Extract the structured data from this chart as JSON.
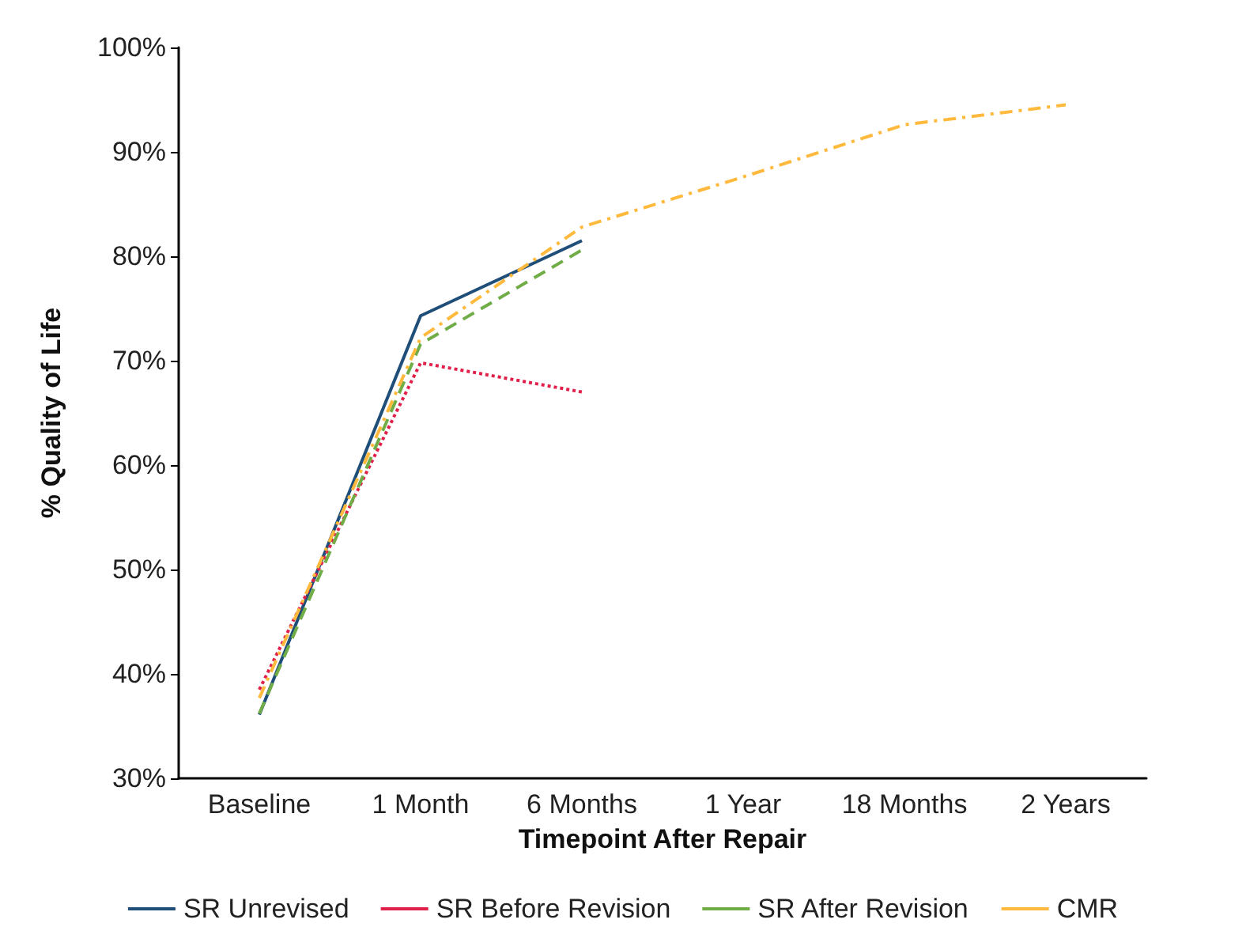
{
  "chart_data": {
    "type": "line",
    "xlabel": "Timepoint After Repair",
    "ylabel": "% Quality of Life",
    "categories": [
      "Baseline",
      "1 Month",
      "6 Months",
      "1 Year",
      "18 Months",
      "2 Years"
    ],
    "series": [
      {
        "name": "SR Unrevised",
        "color": "#1f4e79",
        "line_style": "solid",
        "values": [
          36.1,
          74.3,
          81.5,
          null,
          null,
          null
        ]
      },
      {
        "name": "SR Before Revision",
        "color": "#e0204a",
        "line_style": "dotted",
        "values": [
          38.5,
          69.8,
          67.0,
          null,
          null,
          null
        ]
      },
      {
        "name": "SR After Revision",
        "color": "#70ad47",
        "line_style": "dashed",
        "values": [
          36.2,
          71.6,
          80.6,
          null,
          null,
          null
        ]
      },
      {
        "name": "CMR",
        "color": "#ffb93c",
        "line_style": "dashdot",
        "values": [
          37.7,
          72.2,
          82.8,
          87.6,
          92.6,
          94.5
        ]
      }
    ],
    "ylim": [
      30,
      100
    ],
    "yticks": [
      {
        "value": 30,
        "label": "30%"
      },
      {
        "value": 40,
        "label": "40%"
      },
      {
        "value": 50,
        "label": "50%"
      },
      {
        "value": 60,
        "label": "60%"
      },
      {
        "value": 70,
        "label": "70%"
      },
      {
        "value": 80,
        "label": "80%"
      },
      {
        "value": 90,
        "label": "90%"
      },
      {
        "value": 100,
        "label": "100%"
      }
    ],
    "grid": false,
    "legend": "bottom",
    "marker": "none"
  }
}
